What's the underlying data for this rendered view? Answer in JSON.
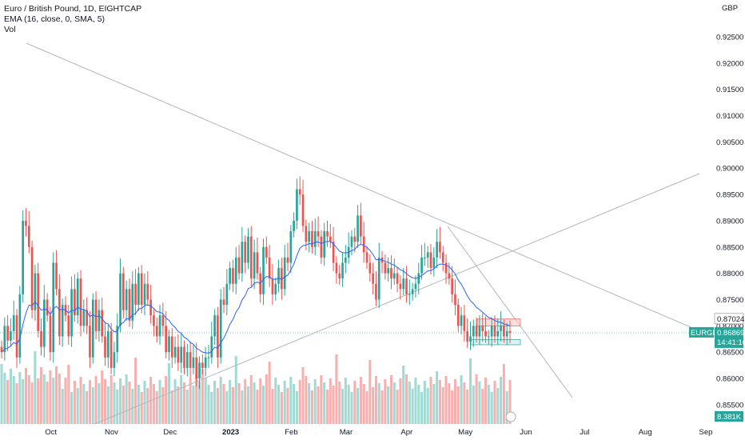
{
  "legend": {
    "line1": "Euro / British Pound, 1D, EIGHTCAP",
    "line2": "EMA (16, close, 0, SMA, 5)",
    "line3": "Vol"
  },
  "price_axis": {
    "currency": "GBP",
    "ticks": [
      "0.92500",
      "0.92000",
      "0.91500",
      "0.91000",
      "0.90500",
      "0.90000",
      "0.89500",
      "0.89000",
      "0.88500",
      "0.88000",
      "0.87500",
      "0.87000",
      "0.86500",
      "0.86000",
      "0.85500"
    ]
  },
  "time_axis": {
    "ticks": [
      "Oct",
      "Nov",
      "Dec",
      "2023",
      "Feb",
      "Mar",
      "Apr",
      "May",
      "Jun",
      "Jul",
      "Aug",
      "Sep"
    ],
    "bold": [
      "2023"
    ]
  },
  "tags": {
    "upper_level": "0.87024",
    "symbol": "EURGBP",
    "last_price": "0.86869",
    "countdown": "14:41:16",
    "volume": "8.381K"
  },
  "colors": {
    "up": "#26a69a",
    "down": "#ef5350",
    "ema": "#2962ff",
    "trendline": "#b2b5be",
    "vol_up": "#a3d9d3",
    "vol_down": "#f7b0af",
    "box_red_fill": "#f8c9c8",
    "box_green_fill": "#c8e8e4"
  },
  "chart_data": {
    "type": "candlestick",
    "symbol": "EURGBP",
    "interval": "1D",
    "ylim": [
      0.8513,
      0.9295
    ],
    "x_start": "2022-09-05",
    "x_end": "2023-09-01",
    "x_ticks": [
      {
        "date": "2022-10-01",
        "label": "Oct"
      },
      {
        "date": "2022-11-01",
        "label": "Nov"
      },
      {
        "date": "2022-12-01",
        "label": "Dec"
      },
      {
        "date": "2023-01-01",
        "label": "2023"
      },
      {
        "date": "2023-02-01",
        "label": "Feb"
      },
      {
        "date": "2023-03-01",
        "label": "Mar"
      },
      {
        "date": "2023-04-01",
        "label": "Apr"
      },
      {
        "date": "2023-05-01",
        "label": "May"
      },
      {
        "date": "2023-06-01",
        "label": "Jun"
      },
      {
        "date": "2023-07-01",
        "label": "Jul"
      },
      {
        "date": "2023-08-01",
        "label": "Aug"
      },
      {
        "date": "2023-09-01",
        "label": "Sep"
      }
    ],
    "y_ticks": [
      0.925,
      0.92,
      0.915,
      0.91,
      0.905,
      0.9,
      0.895,
      0.89,
      0.885,
      0.88,
      0.875,
      0.87,
      0.865,
      0.86,
      0.855
    ],
    "last_price": 0.86869,
    "box_levels": {
      "resistance_zone": [
        0.87,
        0.8713
      ],
      "support_zone": [
        0.8664,
        0.8674
      ]
    },
    "closes": [
      0.865,
      0.87,
      0.8672,
      0.869,
      0.872,
      0.864,
      0.876,
      0.89,
      0.889,
      0.885,
      0.873,
      0.88,
      0.869,
      0.866,
      0.875,
      0.872,
      0.865,
      0.882,
      0.877,
      0.868,
      0.874,
      0.872,
      0.868,
      0.877,
      0.872,
      0.879,
      0.87,
      0.873,
      0.87,
      0.864,
      0.875,
      0.869,
      0.873,
      0.868,
      0.864,
      0.869,
      0.862,
      0.865,
      0.87,
      0.88,
      0.873,
      0.877,
      0.871,
      0.878,
      0.874,
      0.88,
      0.874,
      0.878,
      0.875,
      0.872,
      0.87,
      0.868,
      0.872,
      0.87,
      0.865,
      0.868,
      0.864,
      0.866,
      0.863,
      0.866,
      0.862,
      0.865,
      0.862,
      0.864,
      0.86,
      0.863,
      0.862,
      0.864,
      0.864,
      0.868,
      0.872,
      0.864,
      0.875,
      0.874,
      0.878,
      0.881,
      0.878,
      0.883,
      0.88,
      0.886,
      0.882,
      0.887,
      0.879,
      0.884,
      0.88,
      0.876,
      0.885,
      0.883,
      0.879,
      0.876,
      0.878,
      0.881,
      0.877,
      0.883,
      0.882,
      0.888,
      0.89,
      0.896,
      0.895,
      0.889,
      0.886,
      0.888,
      0.885,
      0.888,
      0.887,
      0.883,
      0.888,
      0.887,
      0.886,
      0.882,
      0.88,
      0.879,
      0.882,
      0.883,
      0.885,
      0.887,
      0.886,
      0.891,
      0.887,
      0.884,
      0.882,
      0.88,
      0.878,
      0.875,
      0.883,
      0.882,
      0.88,
      0.881,
      0.879,
      0.88,
      0.878,
      0.877,
      0.879,
      0.876,
      0.876,
      0.877,
      0.878,
      0.88,
      0.883,
      0.883,
      0.884,
      0.881,
      0.883,
      0.886,
      0.884,
      0.882,
      0.88,
      0.879,
      0.876,
      0.874,
      0.87,
      0.872,
      0.869,
      0.867,
      0.868,
      0.87,
      0.868,
      0.87,
      0.869,
      0.868,
      0.868,
      0.87,
      0.868,
      0.869,
      0.87,
      0.868,
      0.869,
      0.8687
    ]
  }
}
